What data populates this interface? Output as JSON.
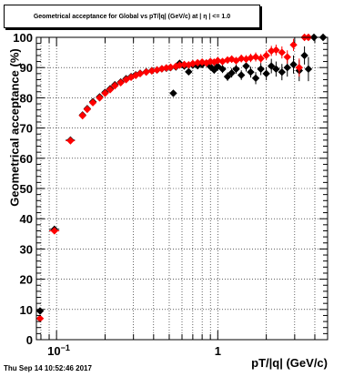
{
  "chart_data": {
    "type": "scatter",
    "title": "Geometrical acceptance for Global vs pT/|q| (GeV/c) at | η | <= 1.0",
    "xlabel": "pT/|q| (GeV/c)",
    "ylabel": "Geometrical acceptance (%)",
    "x_scale": "log",
    "xlim": [
      0.075,
      4.8
    ],
    "ylim": [
      0,
      100
    ],
    "x_tick_labels": [
      "10^-1",
      "1"
    ],
    "y_ticks": [
      0,
      10,
      20,
      30,
      40,
      50,
      60,
      70,
      80,
      90,
      100
    ],
    "grid": true,
    "timestamp": "Thu Sep 14 10:52:46 2017",
    "colors": {
      "series1": "#000000",
      "series2": "#ff0000"
    },
    "series": [
      {
        "color": "#000000",
        "points": [
          {
            "x": 0.079,
            "y": 9.5,
            "ex": 0.004,
            "ey": 0.5
          },
          {
            "x": 0.097,
            "y": 36.5,
            "ex": 0.007,
            "ey": 0.5
          },
          {
            "x": 0.122,
            "y": 66,
            "ex": 0.008,
            "ey": 0.5
          },
          {
            "x": 0.145,
            "y": 74.3,
            "ey": 0.5
          },
          {
            "x": 0.155,
            "y": 76.4,
            "ey": 0.5
          },
          {
            "x": 0.168,
            "y": 78.7,
            "ey": 0.5
          },
          {
            "x": 0.185,
            "y": 80.3,
            "ey": 0.5
          },
          {
            "x": 0.2,
            "y": 81.8,
            "ey": 0.5
          },
          {
            "x": 0.215,
            "y": 83,
            "ey": 0.5
          },
          {
            "x": 0.23,
            "y": 84.3,
            "ey": 0.5
          },
          {
            "x": 0.25,
            "y": 85.2,
            "ey": 0.5
          },
          {
            "x": 0.27,
            "y": 86.3,
            "ey": 0.5
          },
          {
            "x": 0.29,
            "y": 87,
            "ey": 0.5
          },
          {
            "x": 0.31,
            "y": 87.6,
            "ey": 0.5
          },
          {
            "x": 0.33,
            "y": 88.1,
            "ey": 0.5
          },
          {
            "x": 0.36,
            "y": 88.6,
            "ey": 0.5
          },
          {
            "x": 0.39,
            "y": 89,
            "ey": 0.5
          },
          {
            "x": 0.42,
            "y": 89.2,
            "ey": 0.6
          },
          {
            "x": 0.45,
            "y": 89.6,
            "ey": 0.6
          },
          {
            "x": 0.48,
            "y": 89.8,
            "ey": 0.6
          },
          {
            "x": 0.51,
            "y": 90,
            "ey": 0.7
          },
          {
            "x": 0.53,
            "y": 81.5,
            "ey": 1
          },
          {
            "x": 0.55,
            "y": 90.2,
            "ey": 0.7
          },
          {
            "x": 0.58,
            "y": 91.4,
            "ey": 0.7
          },
          {
            "x": 0.62,
            "y": 90.5,
            "ey": 0.8
          },
          {
            "x": 0.66,
            "y": 88.6,
            "ey": 0.9
          },
          {
            "x": 0.7,
            "y": 90.8,
            "ey": 0.9
          },
          {
            "x": 0.75,
            "y": 90.6,
            "ey": 1
          },
          {
            "x": 0.8,
            "y": 91,
            "ey": 1
          },
          {
            "x": 0.85,
            "y": 91.5,
            "ey": 1
          },
          {
            "x": 0.9,
            "y": 90.3,
            "ey": 1
          },
          {
            "x": 0.95,
            "y": 89.2,
            "ey": 1.2
          },
          {
            "x": 1.0,
            "y": 90.4,
            "ey": 1.2
          },
          {
            "x": 1.07,
            "y": 89.5,
            "ey": 1.3
          },
          {
            "x": 1.15,
            "y": 87,
            "ey": 1.4
          },
          {
            "x": 1.22,
            "y": 88.2,
            "ey": 1.5
          },
          {
            "x": 1.3,
            "y": 89.5,
            "ey": 1.5
          },
          {
            "x": 1.4,
            "y": 87.5,
            "ey": 1.6
          },
          {
            "x": 1.5,
            "y": 90.5,
            "ey": 1.8
          },
          {
            "x": 1.6,
            "y": 88.5,
            "ey": 1.8
          },
          {
            "x": 1.72,
            "y": 86.5,
            "ey": 2
          },
          {
            "x": 1.85,
            "y": 89.5,
            "ey": 2
          },
          {
            "x": 2.0,
            "y": 88,
            "ey": 2.2
          },
          {
            "x": 2.15,
            "y": 90.5,
            "ey": 2.4
          },
          {
            "x": 2.3,
            "y": 89.5,
            "ey": 2.5
          },
          {
            "x": 2.5,
            "y": 88.5,
            "ey": 2.7
          },
          {
            "x": 2.7,
            "y": 90,
            "ey": 3
          },
          {
            "x": 2.95,
            "y": 91,
            "ey": 3
          },
          {
            "x": 3.2,
            "y": 89,
            "ey": 3.5
          },
          {
            "x": 3.45,
            "y": 94,
            "ey": 3
          },
          {
            "x": 3.65,
            "y": 89.5,
            "ey": 4
          },
          {
            "x": 3.95,
            "y": 100,
            "ey": 0.5
          },
          {
            "x": 4.5,
            "y": 100,
            "ey": 0.5
          }
        ]
      },
      {
        "color": "#ff0000",
        "points": [
          {
            "x": 0.079,
            "y": 7,
            "ex": 0.004,
            "ey": 0.5
          },
          {
            "x": 0.097,
            "y": 36,
            "ex": 0.007,
            "ey": 0.5
          },
          {
            "x": 0.122,
            "y": 65.8,
            "ex": 0.008,
            "ey": 0.5
          },
          {
            "x": 0.145,
            "y": 74.1,
            "ey": 0.5
          },
          {
            "x": 0.155,
            "y": 76.2,
            "ey": 0.5
          },
          {
            "x": 0.168,
            "y": 78.4,
            "ey": 0.5
          },
          {
            "x": 0.185,
            "y": 80,
            "ey": 0.5
          },
          {
            "x": 0.2,
            "y": 81.5,
            "ey": 0.5
          },
          {
            "x": 0.215,
            "y": 82.7,
            "ey": 0.5
          },
          {
            "x": 0.23,
            "y": 84,
            "ey": 0.5
          },
          {
            "x": 0.25,
            "y": 85,
            "ey": 0.5
          },
          {
            "x": 0.27,
            "y": 86,
            "ey": 0.5
          },
          {
            "x": 0.29,
            "y": 86.8,
            "ey": 0.5
          },
          {
            "x": 0.31,
            "y": 87.4,
            "ey": 0.5
          },
          {
            "x": 0.33,
            "y": 88,
            "ey": 0.5
          },
          {
            "x": 0.36,
            "y": 88.5,
            "ey": 0.5
          },
          {
            "x": 0.39,
            "y": 88.9,
            "ey": 0.5
          },
          {
            "x": 0.42,
            "y": 89.2,
            "ey": 0.6
          },
          {
            "x": 0.45,
            "y": 89.6,
            "ey": 0.6
          },
          {
            "x": 0.48,
            "y": 89.9,
            "ey": 0.6
          },
          {
            "x": 0.51,
            "y": 90.1,
            "ey": 0.7
          },
          {
            "x": 0.55,
            "y": 90.4,
            "ey": 0.7
          },
          {
            "x": 0.58,
            "y": 90.8,
            "ey": 0.7
          },
          {
            "x": 0.62,
            "y": 91,
            "ey": 0.8
          },
          {
            "x": 0.66,
            "y": 90.9,
            "ey": 0.8
          },
          {
            "x": 0.7,
            "y": 91.3,
            "ey": 0.8
          },
          {
            "x": 0.75,
            "y": 91.6,
            "ey": 0.9
          },
          {
            "x": 0.8,
            "y": 91.8,
            "ey": 0.9
          },
          {
            "x": 0.85,
            "y": 91.5,
            "ey": 0.9
          },
          {
            "x": 0.9,
            "y": 92,
            "ey": 1
          },
          {
            "x": 0.95,
            "y": 91.8,
            "ey": 1
          },
          {
            "x": 1.0,
            "y": 92.3,
            "ey": 1
          },
          {
            "x": 1.07,
            "y": 92,
            "ey": 1.1
          },
          {
            "x": 1.15,
            "y": 92.5,
            "ey": 1.1
          },
          {
            "x": 1.22,
            "y": 92.8,
            "ey": 1.2
          },
          {
            "x": 1.3,
            "y": 92.3,
            "ey": 1.2
          },
          {
            "x": 1.4,
            "y": 93,
            "ey": 1.3
          },
          {
            "x": 1.5,
            "y": 92.8,
            "ey": 1.3
          },
          {
            "x": 1.6,
            "y": 93.2,
            "ey": 1.4
          },
          {
            "x": 1.72,
            "y": 93.5,
            "ey": 1.5
          },
          {
            "x": 1.85,
            "y": 93,
            "ey": 1.5
          },
          {
            "x": 2.0,
            "y": 94,
            "ey": 1.6
          },
          {
            "x": 2.15,
            "y": 95.5,
            "ey": 1.7
          },
          {
            "x": 2.3,
            "y": 95.8,
            "ey": 1.8
          },
          {
            "x": 2.5,
            "y": 95,
            "ey": 2
          },
          {
            "x": 2.7,
            "y": 93.5,
            "ey": 2.2
          },
          {
            "x": 2.95,
            "y": 97.5,
            "ey": 2
          },
          {
            "x": 3.2,
            "y": 90,
            "ey": 3
          },
          {
            "x": 3.45,
            "y": 100,
            "ey": 0.5
          },
          {
            "x": 3.65,
            "y": 100,
            "ey": 0.5
          }
        ]
      }
    ]
  }
}
